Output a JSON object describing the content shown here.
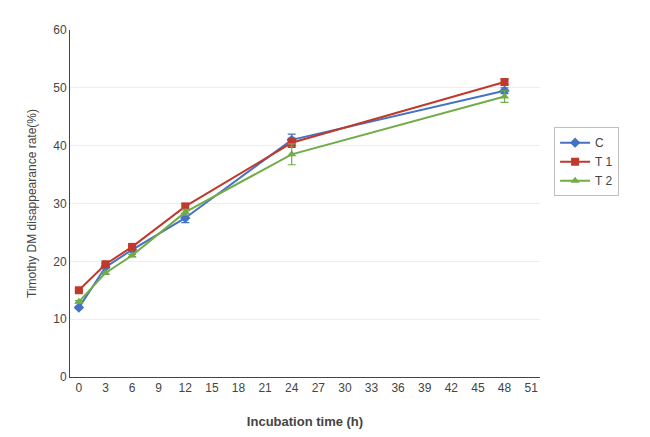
{
  "chart_data": {
    "type": "line",
    "xlabel": "Incubation time (h)",
    "ylabel": "Timothy DM disappearance rate(%)",
    "x": [
      0,
      3,
      6,
      12,
      24,
      48
    ],
    "series": [
      {
        "name": "C",
        "color": "#4472C4",
        "marker": "diamond",
        "values": [
          12.0,
          19.0,
          22.0,
          27.5,
          41.0,
          49.5
        ],
        "errors": [
          0.2,
          0.2,
          0.2,
          0.8,
          1.0,
          0.5
        ]
      },
      {
        "name": "T 1",
        "color": "#C0392B",
        "marker": "square",
        "values": [
          15.0,
          19.5,
          22.5,
          29.5,
          40.5,
          51.0
        ],
        "errors": [
          0.2,
          0.2,
          0.2,
          0.5,
          0.8,
          0.5
        ]
      },
      {
        "name": "T 2",
        "color": "#70AD47",
        "marker": "triangle-up",
        "values": [
          13.0,
          18.0,
          21.0,
          28.5,
          38.5,
          48.5
        ],
        "errors": [
          0.2,
          0.2,
          0.2,
          0.5,
          1.8,
          1.0
        ]
      }
    ],
    "xlim": [
      -1,
      52
    ],
    "ylim": [
      0,
      60
    ],
    "xticks": [
      0,
      3,
      6,
      9,
      12,
      15,
      18,
      21,
      24,
      27,
      30,
      33,
      36,
      39,
      42,
      45,
      48,
      51
    ],
    "yticks": [
      0,
      10,
      20,
      30,
      40,
      50,
      60
    ],
    "grid": "y",
    "legend": "right"
  }
}
